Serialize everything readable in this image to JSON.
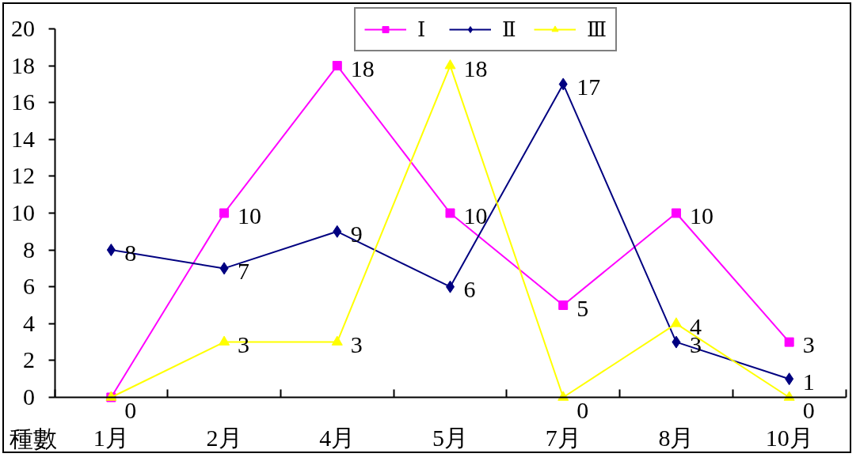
{
  "chart_data": {
    "type": "line",
    "ylabel": "種數",
    "categories": [
      "1月",
      "2月",
      "4月",
      "5月",
      "7月",
      "8月",
      "10月"
    ],
    "series": [
      {
        "name": "Ⅰ",
        "color": "#ff00ff",
        "marker": "square",
        "values": [
          0,
          10,
          18,
          10,
          5,
          10,
          3
        ],
        "value_labels": [
          null,
          "10",
          "18",
          "10",
          "5",
          "10",
          "3"
        ]
      },
      {
        "name": "Ⅱ",
        "color": "#000080",
        "marker": "diamond",
        "values": [
          8,
          7,
          9,
          6,
          17,
          3,
          1
        ],
        "value_labels": [
          "8",
          "7",
          "9",
          "6",
          "17",
          "3",
          "1"
        ]
      },
      {
        "name": "Ⅲ",
        "color": "#ffff00",
        "marker": "triangle",
        "values": [
          0,
          3,
          3,
          18,
          0,
          4,
          0
        ],
        "value_labels": [
          "0",
          "3",
          "3",
          "18",
          "0",
          "4",
          "0"
        ]
      }
    ],
    "ylim": [
      0,
      20
    ],
    "yticks": [
      0,
      2,
      4,
      6,
      8,
      10,
      12,
      14,
      16,
      18,
      20
    ],
    "grid": false,
    "legend": "top",
    "line_style": "solid"
  }
}
